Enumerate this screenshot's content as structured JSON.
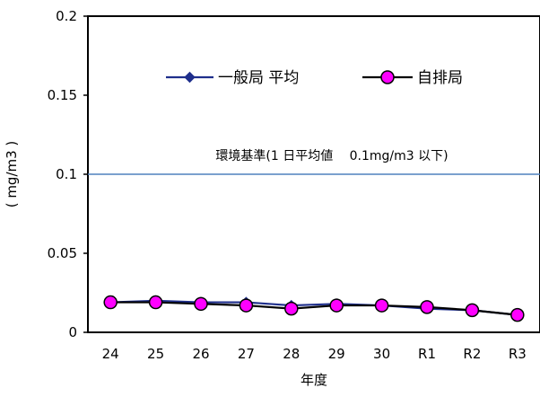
{
  "chart_data": {
    "type": "line",
    "categories": [
      "24",
      "25",
      "26",
      "27",
      "28",
      "29",
      "30",
      "R1",
      "R2",
      "R3"
    ],
    "series": [
      {
        "name": "一般局 平均",
        "color": "#1f2f8c",
        "marker": "diamond",
        "values": [
          0.019,
          0.02,
          0.019,
          0.019,
          0.017,
          0.018,
          0.017,
          0.015,
          0.014,
          0.011
        ]
      },
      {
        "name": "自排局",
        "color": "#000000",
        "marker": "circle",
        "marker_fill": "#ff00ff",
        "values": [
          0.019,
          0.019,
          0.018,
          0.017,
          0.015,
          0.017,
          0.017,
          0.016,
          0.014,
          0.011
        ]
      }
    ],
    "ylim": [
      0,
      0.2
    ],
    "yticks": [
      "0",
      "0.05",
      "0.1",
      "0.15",
      "0.2"
    ],
    "ylabel": "( mg/m3 )",
    "xlabel": "年度",
    "reference_line": {
      "value": 0.1,
      "color": "#4f81bd",
      "label": "環境基準(1 日平均値　 0.1mg/m3 以下)"
    },
    "grid": false,
    "legend_position": "top"
  }
}
